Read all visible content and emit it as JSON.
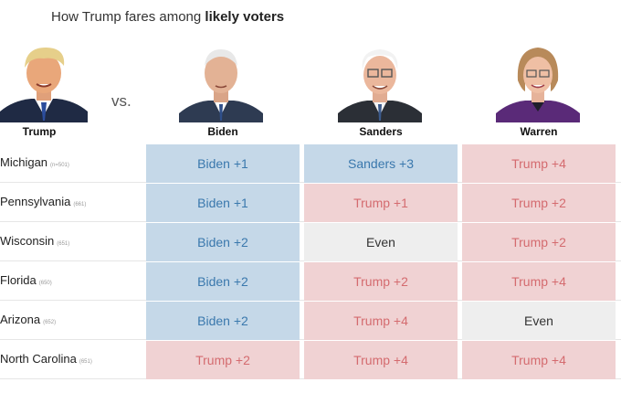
{
  "title_prefix": "How Trump fares among ",
  "title_bold": "likely voters",
  "vs": "vs.",
  "candidates": {
    "trump": "Trump",
    "biden": "Biden",
    "sanders": "Sanders",
    "warren": "Warren"
  },
  "colors": {
    "biden_bg": "#c5d8e8",
    "biden_text": "#3a78ad",
    "trump_bg": "#f0d2d3",
    "trump_text": "#d46b6f",
    "even_bg": "#eeeeee"
  },
  "rows": [
    {
      "state": "Michigan",
      "n": "(n=501)",
      "biden": "Biden +1",
      "sanders": "Sanders +3",
      "warren": "Trump +4"
    },
    {
      "state": "Pennsylvania",
      "n": "(661)",
      "biden": "Biden +1",
      "sanders": "Trump +1",
      "warren": "Trump +2"
    },
    {
      "state": "Wisconsin",
      "n": "(651)",
      "biden": "Biden +2",
      "sanders": "Even",
      "warren": "Trump +2"
    },
    {
      "state": "Florida",
      "n": "(650)",
      "biden": "Biden +2",
      "sanders": "Trump +2",
      "warren": "Trump +4"
    },
    {
      "state": "Arizona",
      "n": "(652)",
      "biden": "Biden +2",
      "sanders": "Trump +4",
      "warren": "Even"
    },
    {
      "state": "North Carolina",
      "n": "(651)",
      "biden": "Trump +2",
      "sanders": "Trump +4",
      "warren": "Trump +4"
    }
  ]
}
